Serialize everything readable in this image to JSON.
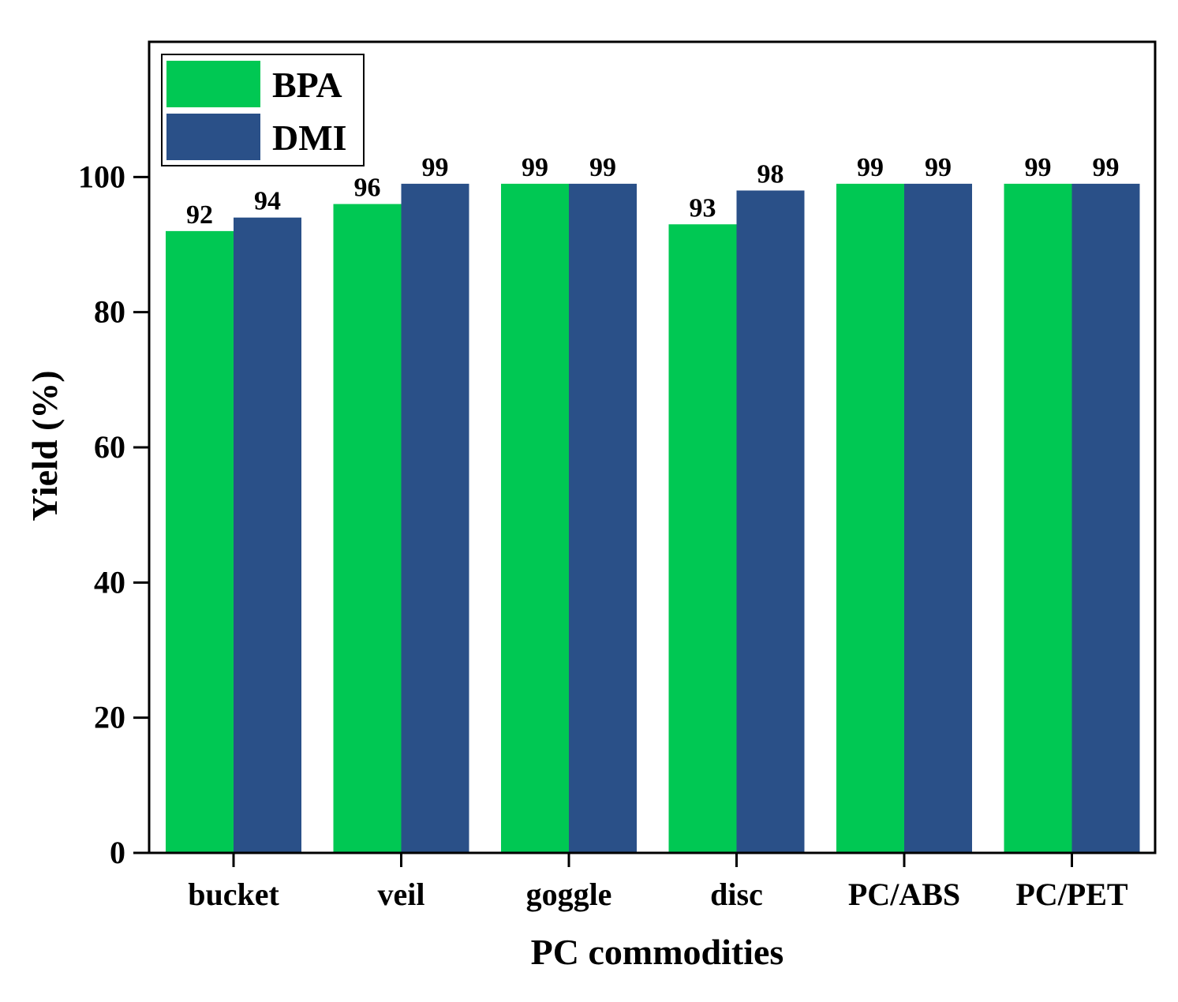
{
  "chart_data": {
    "type": "bar",
    "title": "",
    "xlabel": "PC commodities",
    "ylabel": "Yield (%)",
    "categories": [
      "bucket",
      "veil",
      "goggle",
      "disc",
      "PC/ABS",
      "PC/PET"
    ],
    "series": [
      {
        "name": "BPA",
        "color": "#00c853",
        "values": [
          92,
          96,
          99,
          93,
          99,
          99
        ]
      },
      {
        "name": "DMI",
        "color": "#2a5088",
        "values": [
          94,
          99,
          99,
          98,
          99,
          99
        ]
      }
    ],
    "ylim": [
      0,
      120
    ],
    "yticks": [
      0,
      20,
      40,
      60,
      80,
      100
    ],
    "legend": "top-left",
    "grid": false
  }
}
